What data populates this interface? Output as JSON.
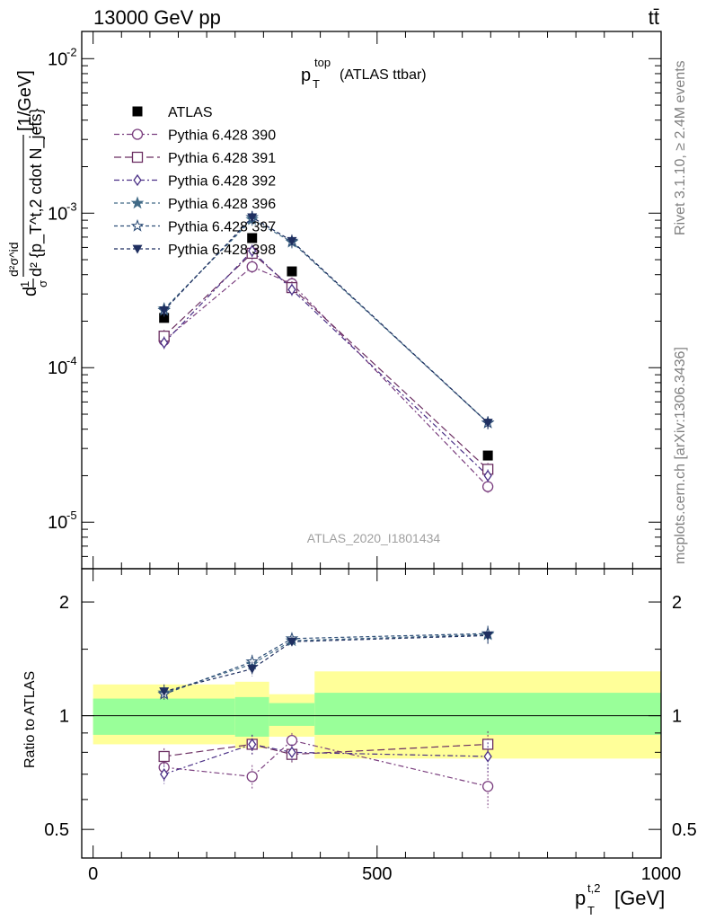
{
  "header": {
    "left": "13000 GeV pp",
    "right": "tt̄"
  },
  "side_text": {
    "top": "Rivet 3.1.10, ≥ 2.4M events",
    "bottom": "mcplots.cern.ch [arXiv:1306.3436]"
  },
  "plot_title": {
    "main": "p",
    "sup": "top",
    "sub": "T",
    "suffix": "(ATLAS ttbar)"
  },
  "analysis_label": "ATLAS_2020_I1801434",
  "ylabel_main": {
    "prefix": "d",
    "frac1_num": "1",
    "frac1_den": "σ",
    "frac2_num": "d²σ^id",
    "frac2_den": "d² {p_T^t,2 cdot N_jets}",
    "units": "[1/GeV]"
  },
  "ylabel_ratio": "Ratio to ATLAS",
  "xlabel": {
    "p": "p",
    "sup": "t,2",
    "sub": "T",
    "units": "[GeV]"
  },
  "colors": {
    "data": "#000000",
    "p390": "#7b3f7f",
    "p391": "#6b2f62",
    "p392": "#4a2f86",
    "p396": "#406a86",
    "p397": "#2f4f78",
    "p398": "#1f2f60",
    "band_stat": "#99ff99",
    "band_syst": "#ffff99"
  },
  "chart_data": [
    {
      "type": "scatter",
      "panel": "main",
      "xlim": [
        -20,
        1000
      ],
      "ylim": [
        5e-06,
        0.015
      ],
      "yscale": "log",
      "x_ticks": [
        0,
        500,
        1000
      ],
      "y_tick_labels": [
        "10^-5",
        "10^-4",
        "10^-3",
        "10^-2"
      ],
      "y_ticks": [
        1e-05,
        0.0001,
        0.001,
        0.01
      ],
      "x": [
        125,
        280,
        350,
        695
      ],
      "series": [
        {
          "name": "ATLAS",
          "marker": "square-filled",
          "values": [
            0.00021,
            0.00069,
            0.00042,
            2.7e-05
          ]
        },
        {
          "name": "Pythia 6.428 390",
          "marker": "circle-open",
          "dash": "6,3,2,3",
          "values": [
            0.00015,
            0.00045,
            0.00035,
            1.7e-05
          ]
        },
        {
          "name": "Pythia 6.428 391",
          "marker": "square-open",
          "dash": "8,4",
          "values": [
            0.00016,
            0.00055,
            0.00033,
            2.2e-05
          ]
        },
        {
          "name": "Pythia 6.428 392",
          "marker": "diamond-open",
          "dash": "6,3,2,3",
          "values": [
            0.000145,
            0.00057,
            0.00032,
            2e-05
          ]
        },
        {
          "name": "Pythia 6.428 396",
          "marker": "star-filled",
          "dash": "4,3",
          "values": [
            0.00024,
            0.00091,
            0.00065,
            4.4e-05
          ]
        },
        {
          "name": "Pythia 6.428 397",
          "marker": "star-open",
          "dash": "4,3",
          "values": [
            0.000235,
            0.00094,
            0.00066,
            4.4e-05
          ]
        },
        {
          "name": "Pythia 6.428 398",
          "marker": "triangle-down-filled",
          "dash": "4,3",
          "values": [
            0.000235,
            0.00094,
            0.00066,
            4.4e-05
          ]
        }
      ],
      "legend": "top-left"
    },
    {
      "type": "scatter",
      "panel": "ratio",
      "xlim": [
        -20,
        1000
      ],
      "ylim": [
        0.42,
        2.45
      ],
      "yscale": "log",
      "y_ticks": [
        0.5,
        1,
        2
      ],
      "y_tick_labels": [
        "0.5",
        "1",
        "2"
      ],
      "x": [
        125,
        280,
        350,
        695
      ],
      "bands": {
        "edges": [
          0,
          250,
          310,
          390,
          1000
        ],
        "stat_lo": [
          0.89,
          0.88,
          0.94,
          0.89
        ],
        "stat_hi": [
          1.11,
          1.12,
          1.08,
          1.15
        ],
        "syst_lo": [
          0.84,
          0.82,
          0.88,
          0.77
        ],
        "syst_hi": [
          1.21,
          1.23,
          1.14,
          1.31
        ]
      },
      "series": [
        {
          "name": "Pythia 6.428 390",
          "values": [
            0.73,
            0.69,
            0.86,
            0.65
          ],
          "err": [
            0.05,
            0.05,
            0.04,
            0.08
          ]
        },
        {
          "name": "Pythia 6.428 391",
          "values": [
            0.78,
            0.84,
            0.79,
            0.84
          ],
          "err": [
            0.04,
            0.05,
            0.04,
            0.07
          ]
        },
        {
          "name": "Pythia 6.428 392",
          "values": [
            0.7,
            0.84,
            0.8,
            0.78
          ],
          "err": [
            0.04,
            0.05,
            0.04,
            0.07
          ]
        },
        {
          "name": "Pythia 6.428 396",
          "values": [
            1.15,
            1.37,
            1.58,
            1.64
          ],
          "err": [
            0.05,
            0.06,
            0.05,
            0.08
          ]
        },
        {
          "name": "Pythia 6.428 397",
          "values": [
            1.14,
            1.39,
            1.6,
            1.65
          ],
          "err": [
            0.05,
            0.06,
            0.05,
            0.08
          ]
        },
        {
          "name": "Pythia 6.428 398",
          "values": [
            1.16,
            1.33,
            1.57,
            1.63
          ],
          "err": [
            0.05,
            0.06,
            0.05,
            0.08
          ]
        }
      ]
    }
  ]
}
